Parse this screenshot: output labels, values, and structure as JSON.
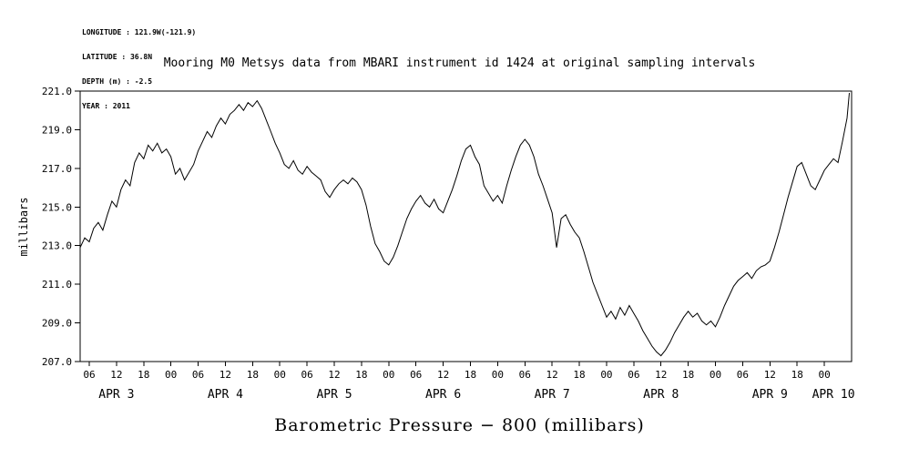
{
  "meta": {
    "lines": [
      "LONGITUDE : 121.9W(-121.9)",
      "LATITUDE : 36.8N",
      "DEPTH (m) : -2.5",
      "YEAR : 2011"
    ]
  },
  "chart_data": {
    "type": "line",
    "title": "Mooring M0 Metsys data from MBARI instrument id 1424 at original sampling intervals",
    "xlabel": "Barometric Pressure − 800 (millibars)",
    "ylabel": "millibars",
    "ylim": [
      207.0,
      221.0
    ],
    "yticks": [
      207.0,
      209.0,
      211.0,
      213.0,
      215.0,
      217.0,
      219.0,
      221.0
    ],
    "xlim_hours": [
      4,
      174
    ],
    "grid": false,
    "legend": null,
    "line_color": "#000000",
    "xticks": [
      {
        "hour": 6,
        "label": "06"
      },
      {
        "hour": 12,
        "label": "12"
      },
      {
        "hour": 18,
        "label": "18"
      },
      {
        "hour": 24,
        "label": "00"
      },
      {
        "hour": 30,
        "label": "06"
      },
      {
        "hour": 36,
        "label": "12"
      },
      {
        "hour": 42,
        "label": "18"
      },
      {
        "hour": 48,
        "label": "00"
      },
      {
        "hour": 54,
        "label": "06"
      },
      {
        "hour": 60,
        "label": "12"
      },
      {
        "hour": 66,
        "label": "18"
      },
      {
        "hour": 72,
        "label": "00"
      },
      {
        "hour": 78,
        "label": "06"
      },
      {
        "hour": 84,
        "label": "12"
      },
      {
        "hour": 90,
        "label": "18"
      },
      {
        "hour": 96,
        "label": "00"
      },
      {
        "hour": 102,
        "label": "06"
      },
      {
        "hour": 108,
        "label": "12"
      },
      {
        "hour": 114,
        "label": "18"
      },
      {
        "hour": 120,
        "label": "00"
      },
      {
        "hour": 126,
        "label": "06"
      },
      {
        "hour": 132,
        "label": "12"
      },
      {
        "hour": 138,
        "label": "18"
      },
      {
        "hour": 144,
        "label": "00"
      },
      {
        "hour": 150,
        "label": "06"
      },
      {
        "hour": 156,
        "label": "12"
      },
      {
        "hour": 162,
        "label": "18"
      },
      {
        "hour": 168,
        "label": "00"
      }
    ],
    "day_labels": [
      {
        "hour": 12,
        "label": "APR 3"
      },
      {
        "hour": 36,
        "label": "APR 4"
      },
      {
        "hour": 60,
        "label": "APR 5"
      },
      {
        "hour": 84,
        "label": "APR 6"
      },
      {
        "hour": 108,
        "label": "APR 7"
      },
      {
        "hour": 132,
        "label": "APR 8"
      },
      {
        "hour": 156,
        "label": "APR 9"
      },
      {
        "hour": 170,
        "label": "APR 10"
      }
    ],
    "x_hours": [
      4,
      5,
      6,
      7,
      8,
      9,
      10,
      11,
      12,
      13,
      14,
      15,
      16,
      17,
      18,
      19,
      20,
      21,
      22,
      23,
      24,
      25,
      26,
      27,
      28,
      29,
      30,
      31,
      32,
      33,
      34,
      35,
      36,
      37,
      38,
      39,
      40,
      41,
      42,
      43,
      44,
      45,
      46,
      47,
      48,
      49,
      50,
      51,
      52,
      53,
      54,
      55,
      56,
      57,
      58,
      59,
      60,
      61,
      62,
      63,
      64,
      65,
      66,
      67,
      68,
      69,
      70,
      71,
      72,
      73,
      74,
      75,
      76,
      77,
      78,
      79,
      80,
      81,
      82,
      83,
      84,
      85,
      86,
      87,
      88,
      89,
      90,
      91,
      92,
      93,
      94,
      95,
      96,
      97,
      98,
      99,
      100,
      101,
      102,
      103,
      104,
      105,
      106,
      107,
      108,
      109,
      110,
      111,
      112,
      113,
      114,
      115,
      116,
      117,
      118,
      119,
      120,
      121,
      122,
      123,
      124,
      125,
      126,
      127,
      128,
      129,
      130,
      131,
      132,
      133,
      134,
      135,
      136,
      137,
      138,
      139,
      140,
      141,
      142,
      143,
      144,
      145,
      146,
      147,
      148,
      149,
      150,
      151,
      152,
      153,
      154,
      155,
      156,
      157,
      158,
      159,
      160,
      161,
      162,
      163,
      164,
      165,
      166,
      167,
      168,
      169,
      170,
      171,
      172,
      173,
      173.5
    ],
    "values": [
      212.9,
      213.4,
      213.2,
      213.9,
      214.2,
      213.8,
      214.6,
      215.3,
      215.0,
      215.9,
      216.4,
      216.1,
      217.3,
      217.8,
      217.5,
      218.2,
      217.9,
      218.3,
      217.8,
      218.0,
      217.6,
      216.7,
      217.0,
      216.4,
      216.8,
      217.2,
      217.9,
      218.4,
      218.9,
      218.6,
      219.2,
      219.6,
      219.3,
      219.8,
      220.0,
      220.3,
      220.0,
      220.4,
      220.2,
      220.5,
      220.1,
      219.5,
      218.9,
      218.3,
      217.8,
      217.2,
      217.0,
      217.4,
      216.9,
      216.7,
      217.1,
      216.8,
      216.6,
      216.4,
      215.8,
      215.5,
      215.9,
      216.2,
      216.4,
      216.2,
      216.5,
      216.3,
      215.9,
      215.1,
      214.0,
      213.1,
      212.7,
      212.2,
      212.0,
      212.4,
      213.0,
      213.7,
      214.4,
      214.9,
      215.3,
      215.6,
      215.2,
      215.0,
      215.4,
      214.9,
      214.7,
      215.3,
      215.9,
      216.6,
      217.4,
      218.0,
      218.2,
      217.6,
      217.2,
      216.1,
      215.7,
      215.3,
      215.6,
      215.2,
      216.1,
      216.9,
      217.6,
      218.2,
      218.5,
      218.2,
      217.6,
      216.7,
      216.1,
      215.4,
      214.7,
      212.9,
      214.4,
      214.6,
      214.1,
      213.7,
      213.4,
      212.7,
      211.9,
      211.1,
      210.5,
      209.9,
      209.3,
      209.6,
      209.2,
      209.8,
      209.4,
      209.9,
      209.5,
      209.1,
      208.6,
      208.2,
      207.8,
      207.5,
      207.3,
      207.6,
      208.0,
      208.5,
      208.9,
      209.3,
      209.6,
      209.3,
      209.5,
      209.1,
      208.9,
      209.1,
      208.8,
      209.3,
      209.9,
      210.4,
      210.9,
      211.2,
      211.4,
      211.6,
      211.3,
      211.7,
      211.9,
      212.0,
      212.2,
      212.9,
      213.7,
      214.6,
      215.5,
      216.3,
      217.1,
      217.3,
      216.7,
      216.1,
      215.9,
      216.4,
      216.9,
      217.2,
      217.5,
      217.3,
      218.4,
      219.6,
      220.9
    ]
  }
}
